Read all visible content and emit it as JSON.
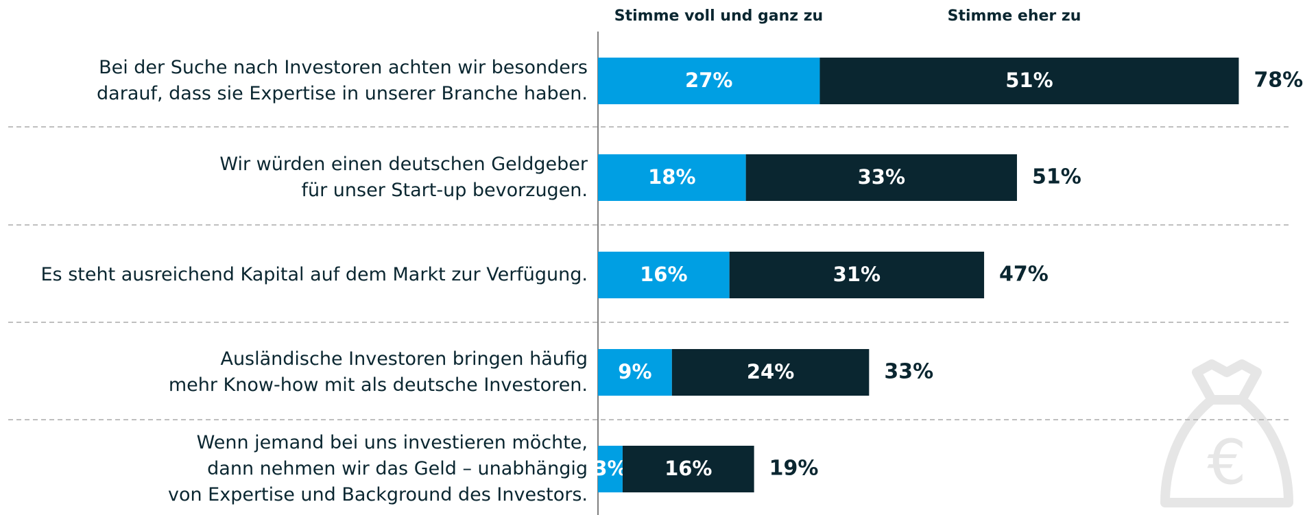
{
  "chart_data": {
    "type": "stacked_barh",
    "categories": [
      "Bei der Suche nach Investoren achten wir besonders\ndarauf, dass sie Expertise in unserer Branche haben.",
      "Wir würden einen deutschen Geldgeber\nfür unser Start-up bevorzugen.",
      "Es steht ausreichend Kapital auf dem Markt zur Verfügung.",
      "Ausländische Investoren bringen häufig\nmehr Know-how mit als deutsche Investoren.",
      "Wenn jemand bei uns investieren möchte,\ndann nehmen wir das Geld – unabhängig\nvon Expertise und Background des Investors."
    ],
    "series": [
      {
        "name": "Stimme voll und ganz zu",
        "color": "#009fe3",
        "values": [
          27,
          18,
          16,
          9,
          3
        ],
        "value_labels": [
          "27%",
          "18%",
          "16%",
          "9%",
          "3%"
        ]
      },
      {
        "name": "Stimme eher zu",
        "color": "#0a2630",
        "values": [
          51,
          33,
          31,
          24,
          16
        ],
        "value_labels": [
          "51%",
          "33%",
          "31%",
          "24%",
          "16%"
        ]
      }
    ],
    "totals": [
      78,
      51,
      47,
      33,
      19
    ],
    "total_labels": [
      "78%",
      "51%",
      "47%",
      "33%",
      "19%"
    ],
    "xlim": [
      0,
      100
    ]
  }
}
